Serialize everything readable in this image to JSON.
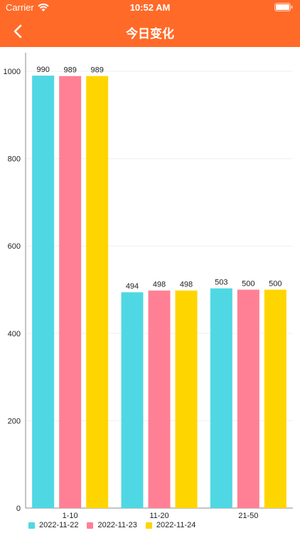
{
  "status_bar": {
    "carrier": "Carrier",
    "time": "10:52 AM"
  },
  "nav": {
    "title": "今日变化"
  },
  "colors": {
    "header": "#ff6a28",
    "series": [
      "#4fd8e3",
      "#ff8094",
      "#ffd500"
    ]
  },
  "chart_data": {
    "type": "bar",
    "categories": [
      "1-10",
      "11-20",
      "21-50"
    ],
    "series": [
      {
        "name": "2022-11-22",
        "values": [
          990,
          494,
          503
        ]
      },
      {
        "name": "2022-11-23",
        "values": [
          989,
          498,
          500
        ]
      },
      {
        "name": "2022-11-24",
        "values": [
          989,
          498,
          500
        ]
      }
    ],
    "ylim": [
      0,
      1000
    ],
    "yticks": [
      "0",
      "200",
      "400",
      "600",
      "800",
      "1000"
    ],
    "grid": true,
    "legend": "bottom-left",
    "title": "",
    "xlabel": "",
    "ylabel": ""
  }
}
